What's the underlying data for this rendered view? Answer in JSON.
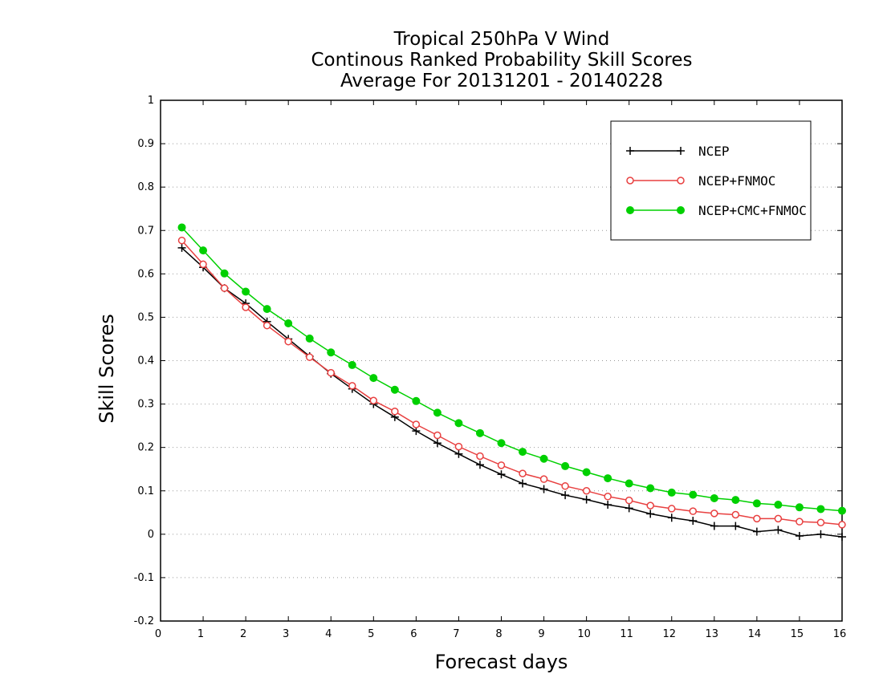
{
  "chart_data": {
    "type": "line",
    "title": [
      "Tropical 250hPa V Wind",
      "Continous Ranked Probability Skill Scores",
      "Average For 20131201 - 20140228"
    ],
    "xlabel": "Forecast days",
    "ylabel": "Skill Scores",
    "xlim": [
      0,
      16
    ],
    "ylim": [
      -0.2,
      1
    ],
    "xticks": [
      "0",
      "1",
      "2",
      "3",
      "4",
      "5",
      "6",
      "7",
      "8",
      "9",
      "10",
      "11",
      "12",
      "13",
      "14",
      "15",
      "16"
    ],
    "yticks": [
      "-0.2",
      "-0.1",
      "0",
      "0.1",
      "0.2",
      "0.3",
      "0.4",
      "0.5",
      "0.6",
      "0.7",
      "0.8",
      "0.9",
      "1"
    ],
    "grid": "horizontal-dotted",
    "legend_position": "top-right",
    "x": [
      0.5,
      1,
      1.5,
      2,
      2.5,
      3,
      3.5,
      4,
      4.5,
      5,
      5.5,
      6,
      6.5,
      7,
      7.5,
      8,
      8.5,
      9,
      9.5,
      10,
      10.5,
      11,
      11.5,
      12,
      12.5,
      13,
      13.5,
      14,
      14.5,
      15,
      15.5,
      16
    ],
    "series": [
      {
        "name": "NCEP",
        "color": "#000000",
        "marker": "plus",
        "values": [
          0.66,
          0.615,
          0.567,
          0.532,
          0.49,
          0.45,
          0.41,
          0.37,
          0.335,
          0.3,
          0.27,
          0.238,
          0.21,
          0.185,
          0.16,
          0.138,
          0.117,
          0.104,
          0.09,
          0.08,
          0.068,
          0.06,
          0.047,
          0.038,
          0.031,
          0.019,
          0.019,
          0.006,
          0.01,
          -0.004,
          0.0,
          -0.006
        ]
      },
      {
        "name": "NCEP+FNMOC",
        "color": "#e84040",
        "marker": "open-circle",
        "values": [
          0.677,
          0.622,
          0.567,
          0.523,
          0.481,
          0.444,
          0.408,
          0.372,
          0.342,
          0.308,
          0.283,
          0.253,
          0.228,
          0.202,
          0.18,
          0.159,
          0.14,
          0.127,
          0.111,
          0.1,
          0.087,
          0.078,
          0.066,
          0.059,
          0.053,
          0.048,
          0.045,
          0.036,
          0.036,
          0.029,
          0.027,
          0.022
        ]
      },
      {
        "name": "NCEP+CMC+FNMOC",
        "color": "#00d000",
        "marker": "filled-circle",
        "values": [
          0.707,
          0.654,
          0.601,
          0.559,
          0.519,
          0.486,
          0.451,
          0.419,
          0.39,
          0.36,
          0.333,
          0.307,
          0.28,
          0.256,
          0.233,
          0.21,
          0.19,
          0.174,
          0.157,
          0.143,
          0.129,
          0.117,
          0.106,
          0.096,
          0.091,
          0.083,
          0.079,
          0.071,
          0.068,
          0.062,
          0.058,
          0.054
        ]
      }
    ]
  }
}
